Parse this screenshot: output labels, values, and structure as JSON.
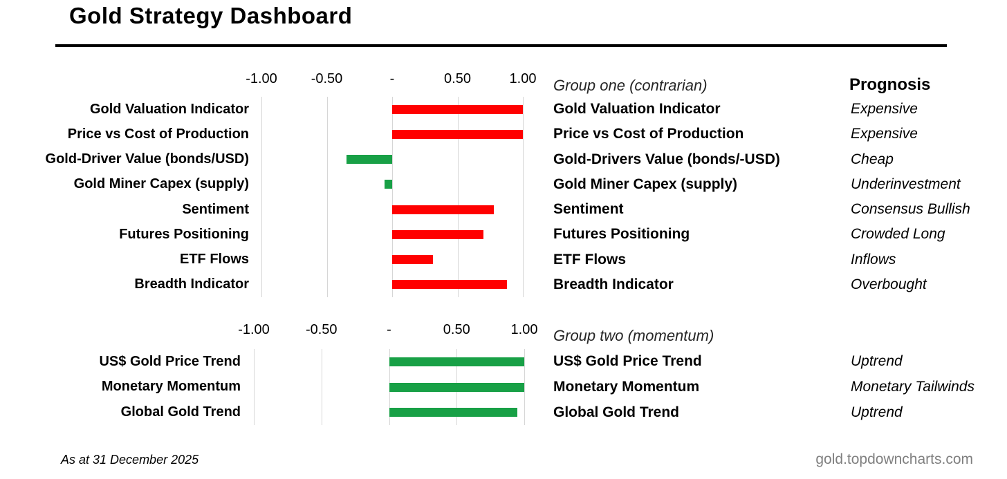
{
  "title": "Gold Strategy Dashboard",
  "table": {
    "prognosis_header": "Prognosis"
  },
  "footer": {
    "as_at": "As at 31 December 2025",
    "source": "gold.topdowncharts.com"
  },
  "colors": {
    "bearish_red": "#FF0000",
    "bullish_green": "#18A046",
    "gridline": "#D6D6D6",
    "source_gray": "#808080"
  },
  "chart_data": [
    {
      "type": "bar",
      "orientation": "horizontal",
      "group": "Group one (contrarian)",
      "xlim": [
        -1.0,
        1.0
      ],
      "grid": true,
      "ticks": [
        "-1.00",
        "-0.50",
        "-",
        "0.50",
        "1.00"
      ],
      "rows": [
        {
          "category": "Gold Valuation Indicator",
          "value": 1.0,
          "color": "#FF0000",
          "table_label": "Gold Valuation Indicator",
          "prognosis": "Expensive"
        },
        {
          "category": "Price vs Cost of Production",
          "value": 1.0,
          "color": "#FF0000",
          "table_label": "Price vs Cost of Production",
          "prognosis": "Expensive"
        },
        {
          "category": "Gold-Driver Value (bonds/USD)",
          "value": -0.35,
          "color": "#18A046",
          "table_label": "Gold-Drivers Value (bonds/-USD)",
          "prognosis": "Cheap"
        },
        {
          "category": "Gold Miner Capex (supply)",
          "value": -0.06,
          "color": "#18A046",
          "table_label": "Gold Miner Capex (supply)",
          "prognosis": "Underinvestment"
        },
        {
          "category": "Sentiment",
          "value": 0.78,
          "color": "#FF0000",
          "table_label": "Sentiment",
          "prognosis": "Consensus Bullish"
        },
        {
          "category": "Futures Positioning",
          "value": 0.7,
          "color": "#FF0000",
          "table_label": "Futures Positioning",
          "prognosis": "Crowded Long"
        },
        {
          "category": "ETF Flows",
          "value": 0.31,
          "color": "#FF0000",
          "table_label": "ETF Flows",
          "prognosis": "Inflows"
        },
        {
          "category": "Breadth Indicator",
          "value": 0.88,
          "color": "#FF0000",
          "table_label": "Breadth Indicator",
          "prognosis": "Overbought"
        }
      ]
    },
    {
      "type": "bar",
      "orientation": "horizontal",
      "group": "Group two (momentum)",
      "xlim": [
        -1.0,
        1.0
      ],
      "grid": true,
      "ticks": [
        "-1.00",
        "-0.50",
        "-",
        "0.50",
        "1.00"
      ],
      "rows": [
        {
          "category": "US$ Gold Price Trend",
          "value": 1.0,
          "color": "#18A046",
          "table_label": "US$ Gold Price Trend",
          "prognosis": "Uptrend"
        },
        {
          "category": "Monetary Momentum",
          "value": 1.0,
          "color": "#18A046",
          "table_label": "Monetary Momentum",
          "prognosis": "Monetary Tailwinds"
        },
        {
          "category": "Global Gold Trend",
          "value": 0.95,
          "color": "#18A046",
          "table_label": "Global Gold Trend",
          "prognosis": "Uptrend"
        }
      ]
    }
  ]
}
